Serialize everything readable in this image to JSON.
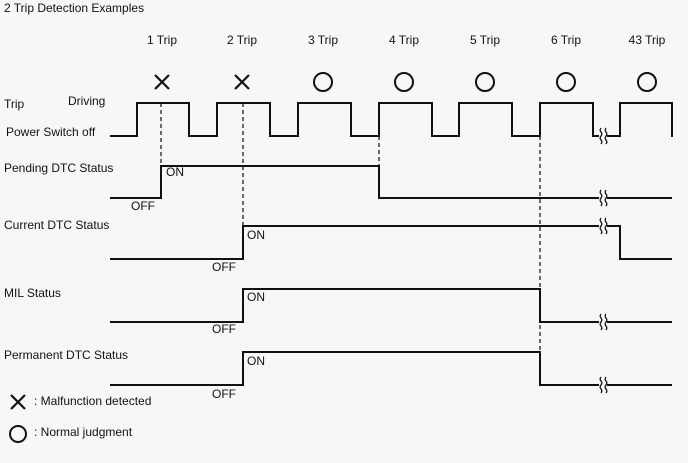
{
  "title": "2 Trip Detection Examples",
  "trips": [
    "1 Trip",
    "2 Trip",
    "3 Trip",
    "4 Trip",
    "5 Trip",
    "6 Trip",
    "43 Trip"
  ],
  "trip_results": [
    "malfunction",
    "malfunction",
    "normal",
    "normal",
    "normal",
    "normal",
    "normal"
  ],
  "signals": {
    "trip": {
      "label": "Trip",
      "high_label": "Driving",
      "low_label": "Power Switch off"
    },
    "pending": {
      "label": "Pending DTC Status",
      "on": "ON",
      "off": "OFF"
    },
    "current": {
      "label": "Current DTC Status",
      "on": "ON",
      "off": "OFF"
    },
    "mil": {
      "label": "MIL Status",
      "on": "ON",
      "off": "OFF"
    },
    "permanent": {
      "label": "Permanent DTC Status",
      "on": "ON",
      "off": "OFF"
    }
  },
  "legend": {
    "malfunction": {
      "icon": "x-mark-icon",
      "label": ": Malfunction detected"
    },
    "normal": {
      "icon": "circle-icon",
      "label": ": Normal judgment"
    }
  },
  "colors": {
    "line": "#111111",
    "background": "#f7f7f7"
  }
}
